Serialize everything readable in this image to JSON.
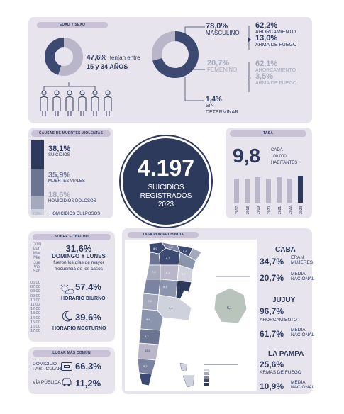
{
  "edad_sexo": {
    "header": "EDAD Y SEXO",
    "age_pct": "47,6%",
    "age_text1": "tenían entre",
    "age_text2": "15 y 34 AÑOS",
    "age_fraction": 0.476,
    "masculino_pct": "78,0%",
    "masculino_label": "MASCULINO",
    "masc_ahorc_pct": "62,2%",
    "masc_ahorc_label": "AHORCAMIENTO",
    "masc_fuego_pct": "13,0%",
    "masc_fuego_label": "ARMA DE FUEGO",
    "femenino_pct": "20,7%",
    "femenino_label": "FEMENINO",
    "fem_ahorc_pct": "62,1%",
    "fem_ahorc_label": "AHORCAMIENTO",
    "fem_fuego_pct": "3,5%",
    "fem_fuego_label": "ARMA DE FUEGO",
    "sin_pct": "1,4%",
    "sin_label1": "SIN",
    "sin_label2": "DETERMINAR"
  },
  "causas": {
    "header": "CAUSAS DE MUERTES VIOLENTAS",
    "items": [
      {
        "pct": "38,1%",
        "label": "SUICIDIOS",
        "color": "#2e3a5c"
      },
      {
        "pct": "35,9%",
        "label": "MUERTES VIALES",
        "color": "#6b7592"
      },
      {
        "pct": "18,6%",
        "label": "HOMICIDIOS DOLOSOS",
        "color": "#a4a9bb"
      },
      {
        "pct": "7,3%",
        "label": "HOMICIDIOS CULPOSOS",
        "color": "#cfd1dc"
      }
    ]
  },
  "center": {
    "number": "4.197",
    "line1": "SUICIDIOS",
    "line2": "REGISTRADOS",
    "line3": "2023"
  },
  "tasa": {
    "header": "TASA",
    "value": "9,8",
    "label1": "CADA",
    "label2": "100.000",
    "label3": "HABITANTES",
    "years": [
      "2017",
      "2018",
      "2019",
      "2020",
      "2021",
      "2022",
      "2023"
    ]
  },
  "hecho": {
    "header": "SOBRE EL HECHO",
    "days": [
      "Dom",
      "Lun",
      "Mar",
      "Mie",
      "Jue",
      "Vie",
      "Sab"
    ],
    "days_pct": "31,6%",
    "days_title": "DOMINGO Y LUNES",
    "days_text1": "fueron los días de mayor",
    "days_text2": "frecuencia de los casos",
    "hours": [
      "06:00",
      "07:00",
      "08:00",
      "09:00",
      "10:00",
      "11:00",
      "12:00",
      "13:00",
      "14:00",
      "15:00",
      "16:00",
      "17:00"
    ],
    "diurno_pct": "57,4%",
    "diurno_label": "HORARIO DIURNO",
    "nocturno_pct": "39,6%",
    "nocturno_label": "HORARIO NOCTURNO"
  },
  "lugar": {
    "header": "LUGAR MÁS COMÚN",
    "domicilio_l1": "DOMICILIO",
    "domicilio_l2": "PARTICULAR",
    "domicilio_pct": "66,3%",
    "via_label": "VÍA PÚBLICA",
    "via_pct": "11,2%"
  },
  "provincia": {
    "header": "TASA POR PROVINCIA",
    "caba_title": "CABA",
    "caba_pct1": "34,7%",
    "caba_text1a": "ERAN",
    "caba_text1b": "MUJERES",
    "caba_pct2": "20,7%",
    "caba_text2a": "MEDIA",
    "caba_text2b": "NACIONAL",
    "jujuy_title": "JUJUY",
    "jujuy_pct1": "96,7%",
    "jujuy_text1": "AHORCAMIENTO",
    "jujuy_pct2": "61,7%",
    "jujuy_text2a": "MEDIA",
    "jujuy_text2b": "NACIONAL",
    "pampa_title": "LA PAMPA",
    "pampa_pct1": "25,6%",
    "pampa_text1": "ARMAS DE FUEGO",
    "pampa_pct2": "10,9%",
    "pampa_text2a": "MEDIA",
    "pampa_text2b": "NACIONAL"
  }
}
